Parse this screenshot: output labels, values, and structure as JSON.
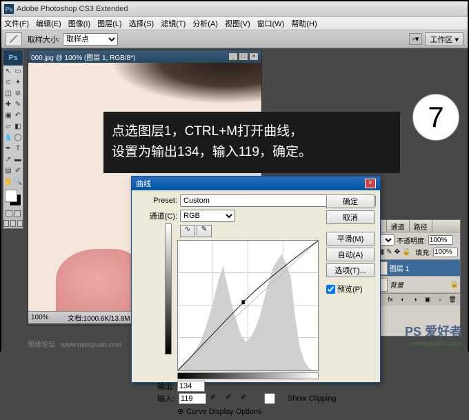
{
  "app": {
    "title": "Adobe Photoshop CS3 Extended"
  },
  "menu": [
    "文件(F)",
    "编辑(E)",
    "图像(I)",
    "图层(L)",
    "选择(S)",
    "滤镜(T)",
    "分析(A)",
    "视图(V)",
    "窗口(W)",
    "帮助(H)"
  ],
  "options": {
    "sample_label": "取样大小:",
    "sample_value": "取样点",
    "workspace": "工作区 ▾"
  },
  "document": {
    "title": "000.jpg @ 100% (图层 1, RGB/8*)",
    "zoom": "100%",
    "status": "文档:1000.6K/13.8M",
    "canvas_bg": "#f5e6dc"
  },
  "overlay": {
    "line1": "点选图层1，CTRL+M打开曲线，",
    "line2": "设置为输出134，输入119，确定。",
    "step": "7"
  },
  "curves": {
    "title": "曲线",
    "preset_label": "Preset:",
    "preset_value": "Custom",
    "channel_label": "通道(C):",
    "channel_value": "RGB",
    "output_label": "输出:",
    "output_value": "134",
    "input_label": "输入:",
    "input_value": "119",
    "show_clipping": "Show Clipping",
    "display_opts": "Curve Display Options",
    "buttons": {
      "ok": "确定",
      "cancel": "取消",
      "smooth": "平滑(M)",
      "auto": "自动(A)",
      "options": "选项(T)..."
    },
    "preview_cb": "预览(P)",
    "point": {
      "input": 119,
      "output": 134,
      "max": 255
    },
    "histogram": [
      0,
      5,
      8,
      12,
      18,
      25,
      35,
      48,
      62,
      78,
      90,
      72,
      55,
      42,
      30,
      25,
      28,
      35,
      45,
      60,
      75,
      88,
      95,
      100,
      92,
      80,
      45,
      20,
      8,
      2,
      0,
      0
    ]
  },
  "layers": {
    "tabs": [
      "图层 ×",
      "通道",
      "路径"
    ],
    "blend_mode": "正常",
    "opacity_label": "不透明度:",
    "opacity": "100%",
    "lock_label": "锁定:",
    "fill_label": "填充:",
    "fill": "100%",
    "items": [
      {
        "name": "图层 1",
        "visible": true,
        "selected": true
      },
      {
        "name": "背景",
        "visible": true,
        "selected": false,
        "locked": true
      }
    ]
  },
  "watermarks": {
    "ps": "PS 爱好者",
    "url": "www.psahz.com",
    "left1": "思缘论坛",
    "left2": "www.missyuan.com"
  },
  "colors": {
    "titlebar_grad": "#0054a6",
    "ui_bg": "#ece9d8",
    "dark_bg": "#484848",
    "selection": "#3d6b99",
    "canvas": "#f5e6dc"
  }
}
